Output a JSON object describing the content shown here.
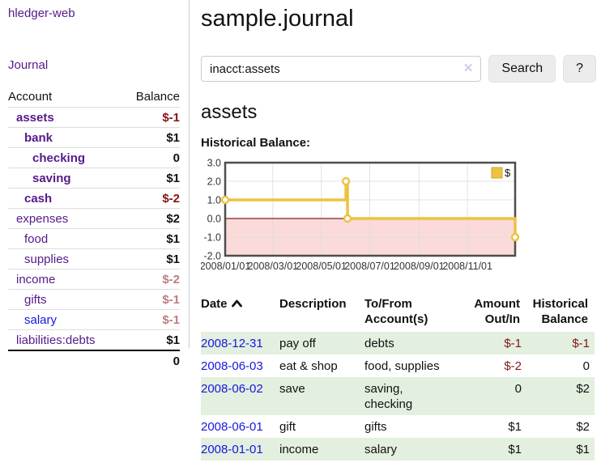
{
  "colors": {
    "link_purple": "#551a8b",
    "link_blue": "#1717dd",
    "negative_strong": "#841515",
    "negative_faded": "#bb7f7f",
    "row_green": "#e3efdf",
    "series_gold": "#EDC240"
  },
  "sidebar": {
    "app_title": "hledger-web",
    "journal_link": "Journal",
    "table": {
      "headers": [
        "Account",
        "Balance"
      ],
      "rows": [
        {
          "account": "assets",
          "depth": 1,
          "bold": true,
          "link_color": "purple",
          "balance": "$-1"
        },
        {
          "account": "bank",
          "depth": 2,
          "bold": true,
          "link_color": "purple",
          "balance": "$1"
        },
        {
          "account": "checking",
          "depth": 3,
          "bold": true,
          "link_color": "purple",
          "balance": "0"
        },
        {
          "account": "saving",
          "depth": 3,
          "bold": true,
          "link_color": "purple",
          "balance": "$1"
        },
        {
          "account": "cash",
          "depth": 2,
          "bold": true,
          "link_color": "purple",
          "balance": "$-2"
        },
        {
          "account": "expenses",
          "depth": 1,
          "bold": false,
          "link_color": "purple",
          "balance": "$2"
        },
        {
          "account": "food",
          "depth": 2,
          "bold": false,
          "link_color": "purple",
          "balance": "$1"
        },
        {
          "account": "supplies",
          "depth": 2,
          "bold": false,
          "link_color": "purple",
          "balance": "$1"
        },
        {
          "account": "income",
          "depth": 1,
          "bold": false,
          "link_color": "purple",
          "balance": "$-2"
        },
        {
          "account": "gifts",
          "depth": 2,
          "bold": false,
          "link_color": "purple",
          "balance": "$-1"
        },
        {
          "account": "salary",
          "depth": 2,
          "bold": false,
          "link_color": "blue",
          "balance": "$-1"
        },
        {
          "account": "liabilities:debts",
          "depth": 1,
          "bold": false,
          "link_color": "purple",
          "balance": "$1"
        }
      ],
      "total": "0"
    }
  },
  "main": {
    "title": "sample.journal",
    "search": {
      "value": "inacct:assets",
      "clear_icon": "✕",
      "button_label": "Search",
      "help_label": "?"
    },
    "account_heading": "assets",
    "chart_label": "Historical Balance:"
  },
  "chart_data": {
    "type": "line",
    "title": "Historical Balance",
    "series": [
      {
        "name": "$",
        "color": "#EDC240",
        "step": true,
        "points": [
          {
            "date": "2008-01-01",
            "value": 1
          },
          {
            "date": "2008-06-01",
            "value": 2
          },
          {
            "date": "2008-06-03",
            "value": 0
          },
          {
            "date": "2008-12-31",
            "value": -1
          }
        ]
      }
    ],
    "x_range": [
      "2008-01-01",
      "2008-12-31"
    ],
    "x_tick_labels": [
      "2008/01/01",
      "2008/03/01",
      "2008/05/01",
      "2008/07/01",
      "2008/09/01",
      "2008/11/01"
    ],
    "y_ticks": [
      3.0,
      2.0,
      1.0,
      0.0,
      -1.0,
      -2.0
    ],
    "ylim": [
      -2,
      3
    ],
    "grid": true,
    "legend_position": "top-right",
    "legend_label": "$",
    "negative_region_color": "#fbdada",
    "zero_line_color": "#8b1a1a",
    "border_color": "#4d4d4d",
    "grid_color": "#dcdcdc"
  },
  "register": {
    "headers": [
      {
        "label": "Date",
        "align": "left",
        "sorted": "asc"
      },
      {
        "label": "Description",
        "align": "left"
      },
      {
        "label": "To/From Account(s)",
        "align": "left"
      },
      {
        "label": "Amount Out/In",
        "align": "right"
      },
      {
        "label": "Historical Balance",
        "align": "right"
      }
    ],
    "rows": [
      {
        "date": "2008-12-31",
        "description": "pay off",
        "accounts": "debts",
        "amount": "$-1",
        "balance": "$-1"
      },
      {
        "date": "2008-06-03",
        "description": "eat & shop",
        "accounts": "food, supplies",
        "amount": "$-2",
        "balance": "0"
      },
      {
        "date": "2008-06-02",
        "description": "save",
        "accounts": "saving, checking",
        "amount": "0",
        "balance": "$2"
      },
      {
        "date": "2008-06-01",
        "description": "gift",
        "accounts": "gifts",
        "amount": "$1",
        "balance": "$2"
      },
      {
        "date": "2008-01-01",
        "description": "income",
        "accounts": "salary",
        "amount": "$1",
        "balance": "$1"
      }
    ]
  }
}
